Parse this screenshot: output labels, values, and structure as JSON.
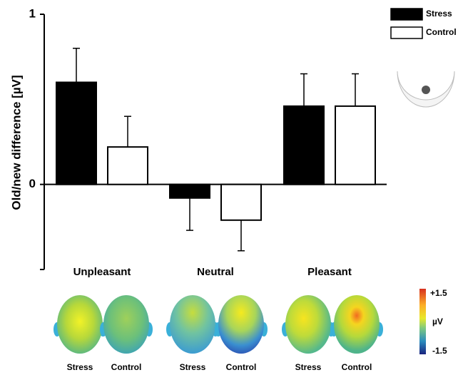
{
  "chart_data": {
    "type": "bar",
    "ylabel": "Old/new difference [µV]",
    "categories": [
      "Unpleasant",
      "Neutral",
      "Pleasant"
    ],
    "series": [
      {
        "name": "Stress",
        "color": "#000000",
        "values": [
          0.6,
          -0.08,
          0.46
        ],
        "errors": [
          0.2,
          0.19,
          0.19
        ]
      },
      {
        "name": "Control",
        "color": "#ffffff",
        "values": [
          0.22,
          -0.21,
          0.46
        ],
        "errors": [
          0.18,
          0.18,
          0.19
        ]
      }
    ],
    "ylim": [
      -0.5,
      1
    ],
    "yticks": [
      0,
      1
    ],
    "legend": "upper right"
  },
  "topomaps": {
    "labels": [
      "Stress",
      "Control",
      "Stress",
      "Control",
      "Stress",
      "Control"
    ],
    "colorbar": {
      "max": "+1.5",
      "unit": "µV",
      "min": "-1.5"
    }
  }
}
